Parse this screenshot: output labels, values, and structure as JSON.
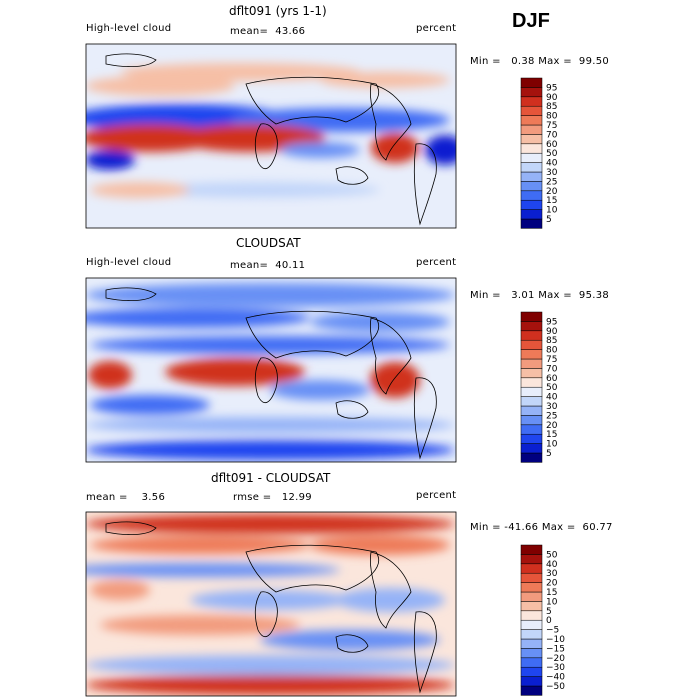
{
  "season": "DJF",
  "chart_data": [
    {
      "type": "heatmap",
      "title": "dflt091 (yrs 1-1)",
      "variable": "High-level cloud",
      "units": "percent",
      "mean_label": "mean=",
      "mean": "43.66",
      "min_label": "Min =",
      "min": "0.38",
      "max_label": "Max =",
      "max": "99.50",
      "colorbar_levels": [
        "5",
        "10",
        "15",
        "20",
        "25",
        "30",
        "40",
        "50",
        "60",
        "70",
        "75",
        "80",
        "85",
        "90",
        "95"
      ],
      "colorbar_colors": [
        "#00007f",
        "#0a1fd0",
        "#1f45ef",
        "#3f6cf4",
        "#6790f5",
        "#95b3f7",
        "#c2d6f9",
        "#e8eefb",
        "#fbe6dc",
        "#f6bfa6",
        "#f29b7e",
        "#ee7a58",
        "#e5553a",
        "#d0301f",
        "#a5120d",
        "#7f0000"
      ]
    },
    {
      "type": "heatmap",
      "title": "CLOUDSAT",
      "variable": "High-level cloud",
      "units": "percent",
      "mean_label": "mean=",
      "mean": "40.11",
      "min_label": "Min =",
      "min": "3.01",
      "max_label": "Max =",
      "max": "95.38",
      "colorbar_levels": [
        "5",
        "10",
        "15",
        "20",
        "25",
        "30",
        "40",
        "50",
        "60",
        "70",
        "75",
        "80",
        "85",
        "90",
        "95"
      ],
      "colorbar_colors": [
        "#00007f",
        "#0a1fd0",
        "#1f45ef",
        "#3f6cf4",
        "#6790f5",
        "#95b3f7",
        "#c2d6f9",
        "#e8eefb",
        "#fbe6dc",
        "#f6bfa6",
        "#f29b7e",
        "#ee7a58",
        "#e5553a",
        "#d0301f",
        "#a5120d",
        "#7f0000"
      ]
    },
    {
      "type": "heatmap",
      "title": "dflt091 - CLOUDSAT",
      "units": "percent",
      "mean_label": "mean =",
      "mean": "3.56",
      "rmse_label": "rmse =",
      "rmse": "12.99",
      "min_label": "Min =",
      "min": "-41.66",
      "max_label": "Max =",
      "max": "60.77",
      "colorbar_levels": [
        "−50",
        "−40",
        "−30",
        "−20",
        "−15",
        "−10",
        "−5",
        "0",
        "5",
        "10",
        "15",
        "20",
        "30",
        "40",
        "50"
      ],
      "colorbar_colors": [
        "#00007f",
        "#0a1fd0",
        "#1f45ef",
        "#3f6cf4",
        "#6790f5",
        "#95b3f7",
        "#c2d6f9",
        "#e8eefb",
        "#fbe6dc",
        "#f6bfa6",
        "#f29b7e",
        "#ee7a58",
        "#e5553a",
        "#d0301f",
        "#a5120d",
        "#7f0000"
      ]
    }
  ]
}
